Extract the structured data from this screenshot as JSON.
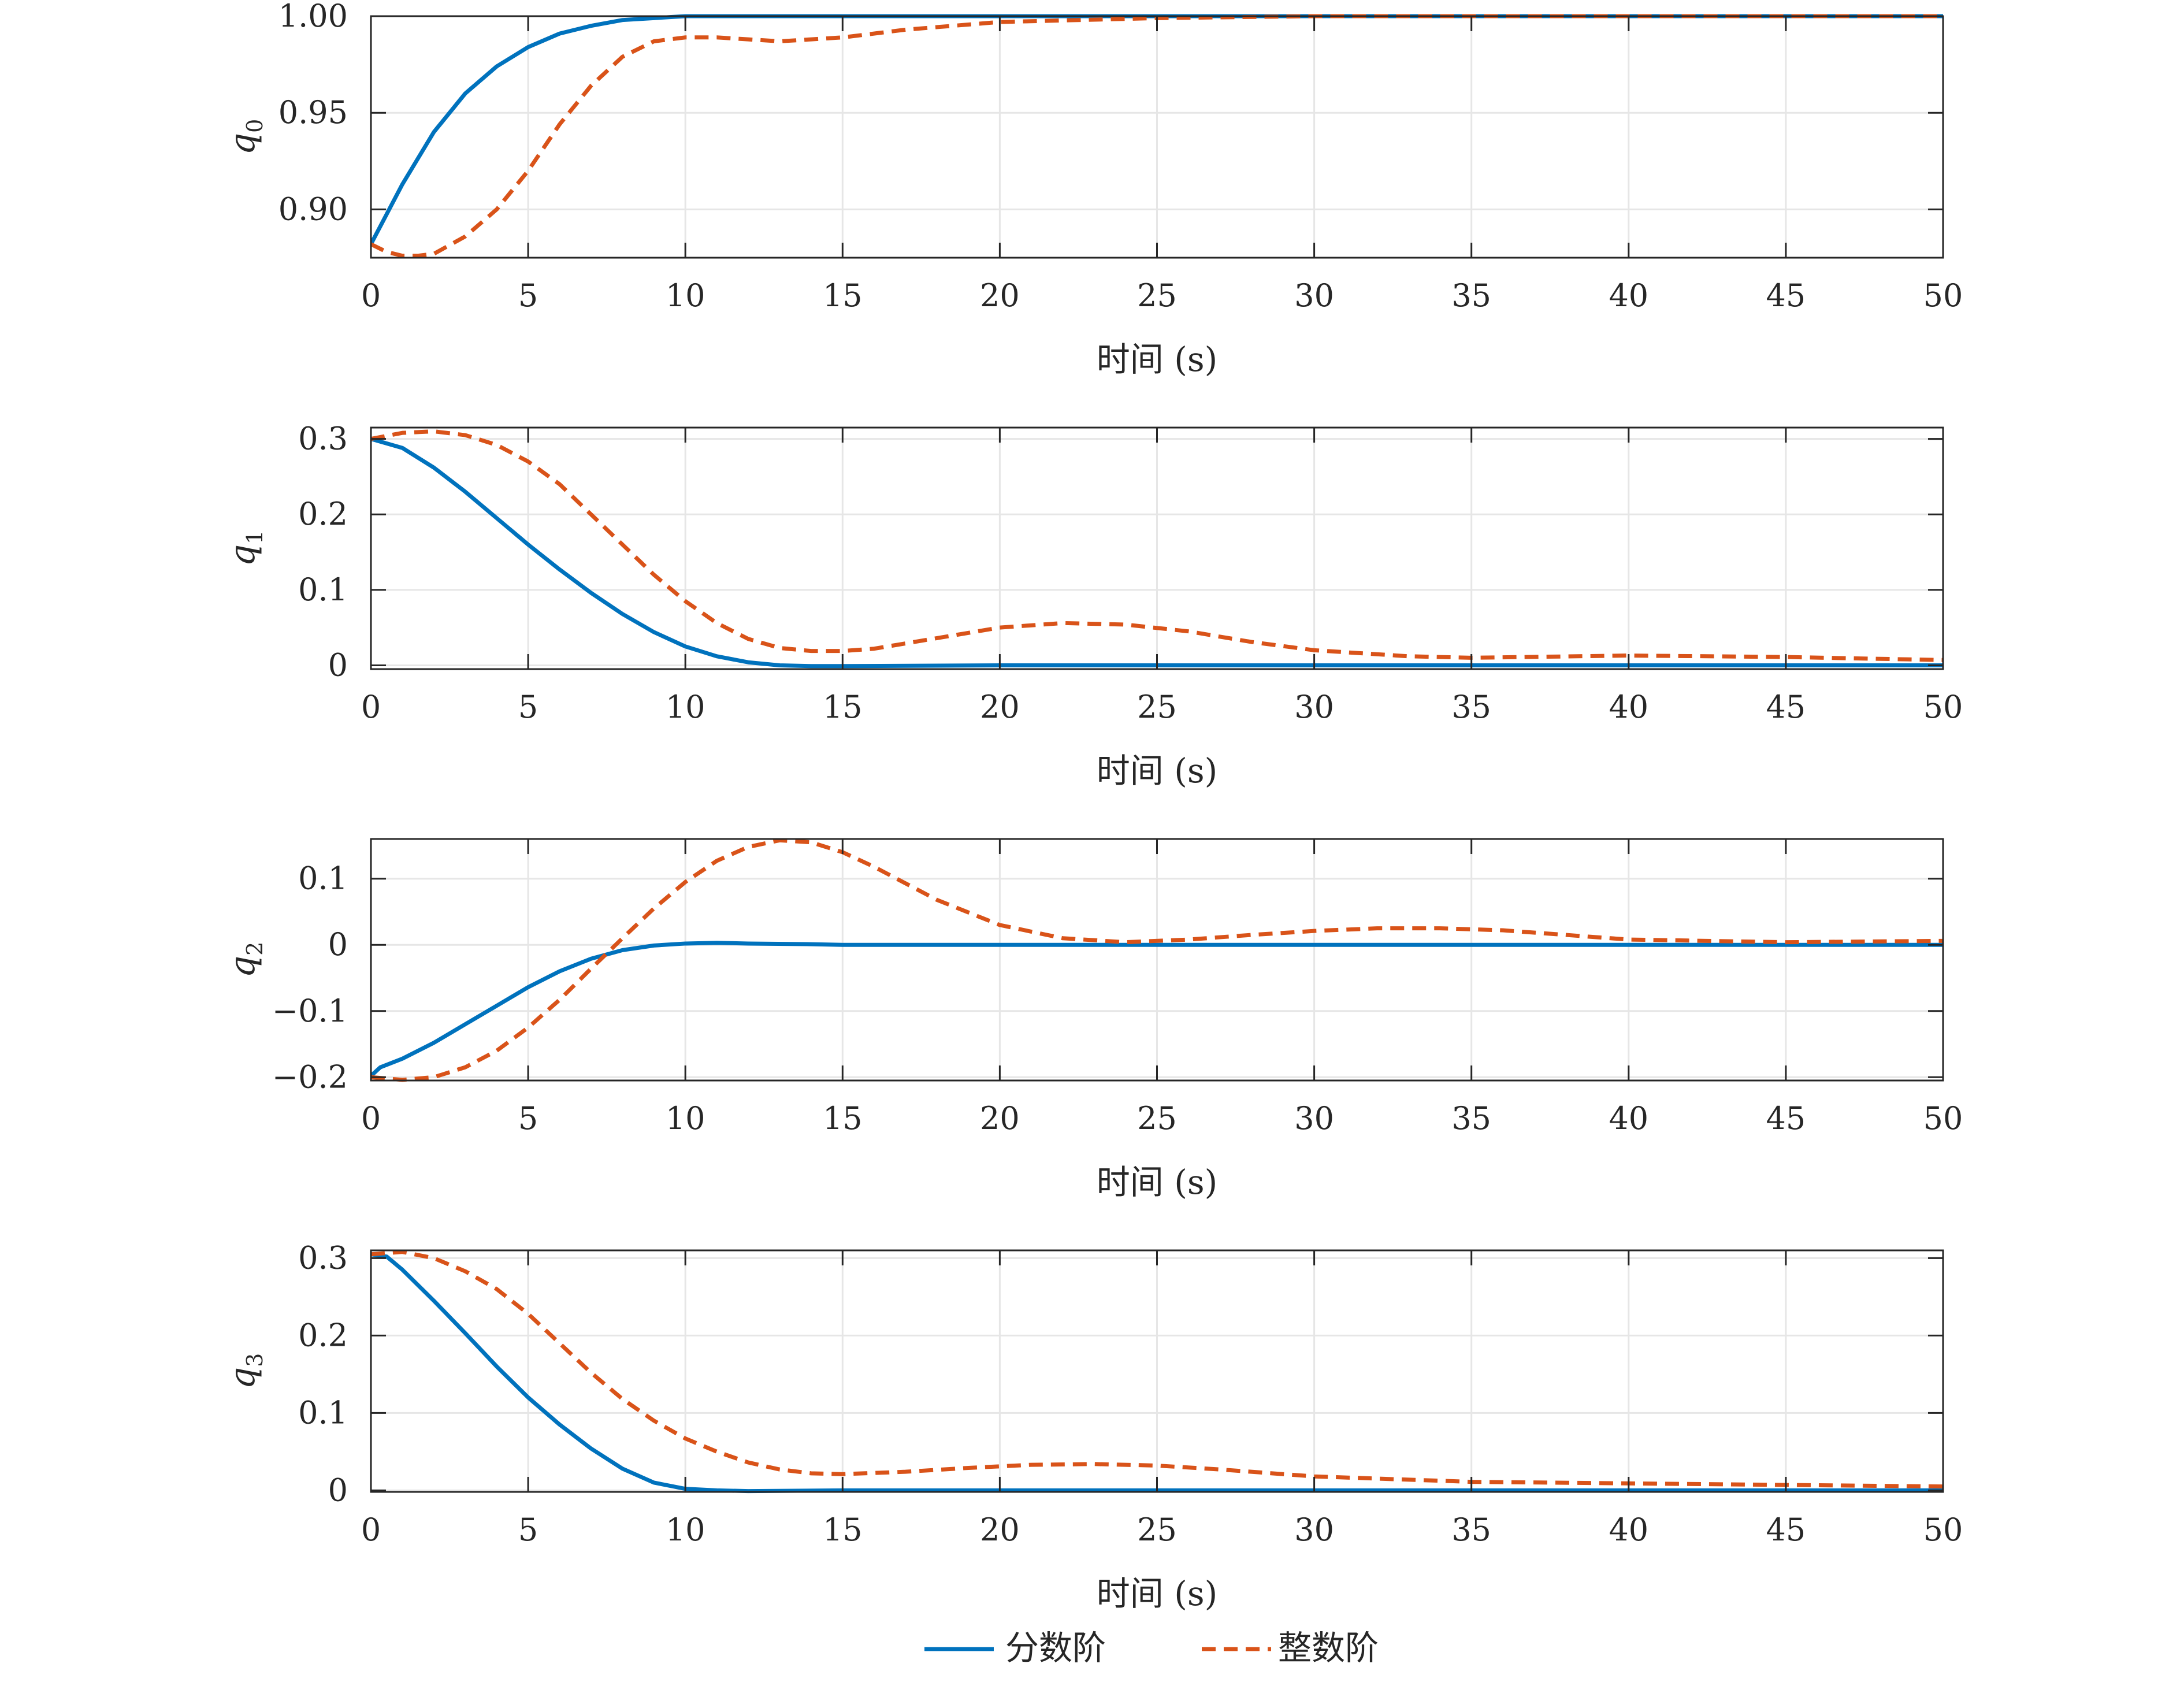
{
  "chart_data": [
    {
      "type": "line",
      "ylabel": "q",
      "ylabel_sub": "0",
      "xlabel": "时间 (s)",
      "xlim": [
        0,
        50
      ],
      "ylim": [
        0.875,
        1.0
      ],
      "xticks": [
        "0",
        "5",
        "10",
        "15",
        "20",
        "25",
        "30",
        "35",
        "40",
        "45",
        "50"
      ],
      "yticks": [
        {
          "value": 0.9,
          "label": "0.90"
        },
        {
          "value": 0.95,
          "label": "0.95"
        },
        {
          "value": 1.0,
          "label": "1.00"
        }
      ],
      "grid": true,
      "series": [
        {
          "name": "分数阶",
          "color": "#0072BD",
          "style": "solid",
          "x": [
            0,
            1,
            2,
            3,
            4,
            5,
            6,
            7,
            8,
            9,
            10,
            12,
            15,
            20,
            30,
            40,
            50
          ],
          "y": [
            0.882,
            0.913,
            0.94,
            0.96,
            0.974,
            0.984,
            0.991,
            0.995,
            0.998,
            0.999,
            1.0,
            1.0,
            1.0,
            1.0,
            1.0,
            1.0,
            1.0
          ]
        },
        {
          "name": "整数阶",
          "color": "#D95319",
          "style": "dashed",
          "x": [
            0,
            0.5,
            1,
            1.5,
            2,
            3,
            4,
            5,
            6,
            7,
            8,
            9,
            10,
            11,
            12,
            13,
            14,
            15,
            17,
            20,
            25,
            30,
            35,
            40,
            45,
            50
          ],
          "y": [
            0.882,
            0.878,
            0.876,
            0.876,
            0.877,
            0.886,
            0.9,
            0.92,
            0.944,
            0.964,
            0.979,
            0.987,
            0.989,
            0.989,
            0.988,
            0.987,
            0.988,
            0.989,
            0.993,
            0.997,
            0.999,
            1.0,
            1.0,
            1.0,
            1.0,
            1.0
          ]
        }
      ]
    },
    {
      "type": "line",
      "ylabel": "q",
      "ylabel_sub": "1",
      "xlabel": "时间 (s)",
      "xlim": [
        0,
        50
      ],
      "ylim": [
        -0.005,
        0.315
      ],
      "xticks": [
        "0",
        "5",
        "10",
        "15",
        "20",
        "25",
        "30",
        "35",
        "40",
        "45",
        "50"
      ],
      "yticks": [
        {
          "value": 0,
          "label": "0"
        },
        {
          "value": 0.1,
          "label": "0.1"
        },
        {
          "value": 0.2,
          "label": "0.2"
        },
        {
          "value": 0.3,
          "label": "0.3"
        }
      ],
      "grid": true,
      "series": [
        {
          "name": "分数阶",
          "color": "#0072BD",
          "style": "solid",
          "x": [
            0,
            1,
            2,
            3,
            4,
            5,
            6,
            7,
            8,
            9,
            10,
            11,
            12,
            13,
            14,
            15,
            20,
            30,
            40,
            50
          ],
          "y": [
            0.3,
            0.288,
            0.262,
            0.23,
            0.195,
            0.16,
            0.127,
            0.096,
            0.068,
            0.044,
            0.025,
            0.012,
            0.004,
            0.0,
            -0.001,
            -0.001,
            0.0,
            0.0,
            0.0,
            0.0
          ]
        },
        {
          "name": "整数阶",
          "color": "#D95319",
          "style": "dashed",
          "x": [
            0,
            1,
            2,
            3,
            4,
            5,
            6,
            7,
            8,
            9,
            10,
            11,
            12,
            13,
            14,
            15,
            16,
            18,
            20,
            22,
            24,
            26,
            28,
            30,
            33,
            35,
            40,
            45,
            50
          ],
          "y": [
            0.3,
            0.308,
            0.31,
            0.305,
            0.292,
            0.27,
            0.24,
            0.2,
            0.16,
            0.12,
            0.085,
            0.056,
            0.035,
            0.023,
            0.019,
            0.019,
            0.022,
            0.036,
            0.05,
            0.056,
            0.054,
            0.045,
            0.031,
            0.02,
            0.012,
            0.01,
            0.013,
            0.011,
            0.007
          ]
        }
      ]
    },
    {
      "type": "line",
      "ylabel": "q",
      "ylabel_sub": "2",
      "xlabel": "时间 (s)",
      "xlim": [
        0,
        50
      ],
      "ylim": [
        -0.205,
        0.16
      ],
      "xticks": [
        "0",
        "5",
        "10",
        "15",
        "20",
        "25",
        "30",
        "35",
        "40",
        "45",
        "50"
      ],
      "yticks": [
        {
          "value": -0.2,
          "label": "−0.2"
        },
        {
          "value": -0.1,
          "label": "−0.1"
        },
        {
          "value": 0,
          "label": "0"
        },
        {
          "value": 0.1,
          "label": "0.1"
        }
      ],
      "grid": true,
      "series": [
        {
          "name": "分数阶",
          "color": "#0072BD",
          "style": "solid",
          "x": [
            0,
            0.3,
            1,
            2,
            3,
            4,
            5,
            6,
            7,
            8,
            9,
            10,
            11,
            12,
            14,
            15,
            20,
            30,
            40,
            50
          ],
          "y": [
            -0.198,
            -0.185,
            -0.172,
            -0.148,
            -0.12,
            -0.092,
            -0.064,
            -0.04,
            -0.021,
            -0.008,
            -0.001,
            0.002,
            0.003,
            0.002,
            0.001,
            0.0,
            0.0,
            0.0,
            0.0,
            0.0
          ]
        },
        {
          "name": "整数阶",
          "color": "#D95319",
          "style": "dashed",
          "x": [
            0,
            1,
            2,
            3,
            4,
            5,
            6,
            7,
            8,
            9,
            10,
            11,
            12,
            13,
            14,
            15,
            16,
            18,
            20,
            22,
            24,
            26,
            28,
            30,
            32,
            34,
            36,
            40,
            45,
            50
          ],
          "y": [
            -0.2,
            -0.204,
            -0.2,
            -0.185,
            -0.16,
            -0.125,
            -0.083,
            -0.036,
            0.01,
            0.055,
            0.095,
            0.127,
            0.148,
            0.158,
            0.155,
            0.14,
            0.118,
            0.068,
            0.03,
            0.01,
            0.004,
            0.008,
            0.015,
            0.021,
            0.025,
            0.025,
            0.022,
            0.008,
            0.004,
            0.006
          ]
        }
      ]
    },
    {
      "type": "line",
      "ylabel": "q",
      "ylabel_sub": "3",
      "xlabel": "时间 (s)",
      "xlim": [
        0,
        50
      ],
      "ylim": [
        -0.002,
        0.31
      ],
      "xticks": [
        "0",
        "5",
        "10",
        "15",
        "20",
        "25",
        "30",
        "35",
        "40",
        "45",
        "50"
      ],
      "yticks": [
        {
          "value": 0,
          "label": "0"
        },
        {
          "value": 0.1,
          "label": "0.1"
        },
        {
          "value": 0.2,
          "label": "0.2"
        },
        {
          "value": 0.3,
          "label": "0.3"
        }
      ],
      "grid": true,
      "series": [
        {
          "name": "分数阶",
          "color": "#0072BD",
          "style": "solid",
          "x": [
            0,
            0.5,
            1,
            2,
            3,
            4,
            5,
            6,
            7,
            8,
            9,
            10,
            11,
            12,
            15,
            20,
            30,
            40,
            50
          ],
          "y": [
            0.305,
            0.302,
            0.285,
            0.245,
            0.203,
            0.16,
            0.12,
            0.085,
            0.054,
            0.028,
            0.01,
            0.002,
            0.0,
            -0.001,
            0.0,
            0.0,
            0.0,
            0.0,
            0.0
          ]
        },
        {
          "name": "整数阶",
          "color": "#D95319",
          "style": "dashed",
          "x": [
            0,
            1,
            2,
            3,
            4,
            5,
            6,
            7,
            8,
            9,
            10,
            11,
            12,
            13,
            14,
            15,
            17,
            19,
            21,
            23,
            25,
            27,
            30,
            35,
            40,
            45,
            50
          ],
          "y": [
            0.305,
            0.308,
            0.3,
            0.283,
            0.26,
            0.228,
            0.19,
            0.152,
            0.118,
            0.09,
            0.067,
            0.05,
            0.036,
            0.027,
            0.022,
            0.021,
            0.024,
            0.029,
            0.033,
            0.034,
            0.032,
            0.027,
            0.018,
            0.011,
            0.009,
            0.007,
            0.005
          ]
        }
      ]
    }
  ],
  "legend": {
    "items": [
      {
        "label": "分数阶",
        "color": "#0072BD",
        "style": "solid"
      },
      {
        "label": "整数阶",
        "color": "#D95319",
        "style": "dashed"
      }
    ]
  }
}
